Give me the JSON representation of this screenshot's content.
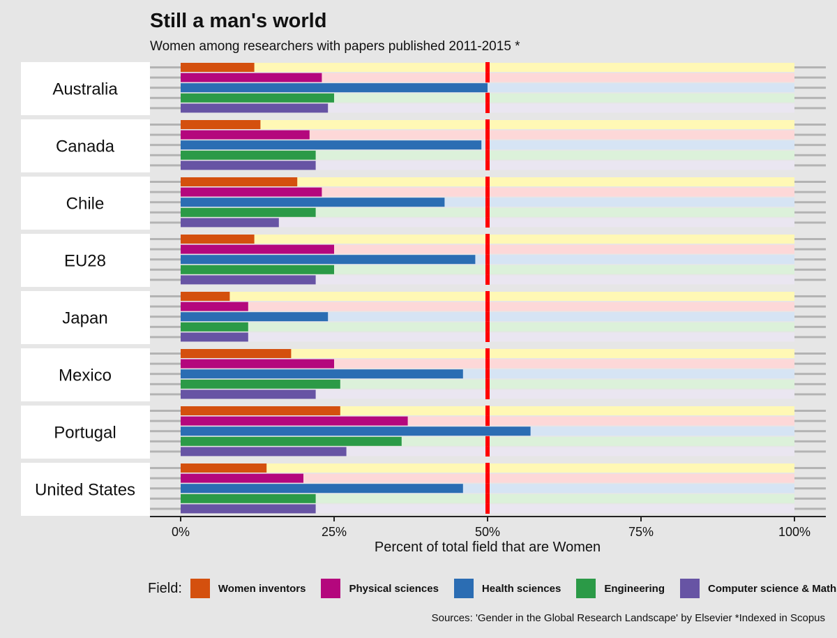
{
  "header": {
    "title": "Still a man's world",
    "subtitle": "Women among researchers with papers published 2011-2015 *"
  },
  "legend": {
    "title": "Field:",
    "items": [
      {
        "label": "Women inventors",
        "color": "#d4500e"
      },
      {
        "label": "Physical sciences",
        "color": "#b4077d"
      },
      {
        "label": "Health sciences",
        "color": "#2b6db3"
      },
      {
        "label": "Engineering",
        "color": "#2b9a47"
      },
      {
        "label": "Computer science & Math",
        "color": "#6754a4"
      }
    ]
  },
  "source": "Sources: 'Gender in the Global Research Landscape' by Elsevier *Indexed in Scopus",
  "chart_data": {
    "type": "bar",
    "orientation": "horizontal",
    "xlabel": "Percent of total field that are Women",
    "xlim": [
      0,
      100
    ],
    "xticks": [
      "0%",
      "25%",
      "50%",
      "75%",
      "100%"
    ],
    "xtick_values": [
      0,
      25,
      50,
      75,
      100
    ],
    "reference_line": 50,
    "reference_color": "#ff0000",
    "background_colors": [
      "#fff8b5",
      "#fdd8d8",
      "#d6e4f4",
      "#dcf1da",
      "#eae6f1"
    ],
    "categories": [
      "Australia",
      "Canada",
      "Chile",
      "EU28",
      "Japan",
      "Mexico",
      "Portugal",
      "United States"
    ],
    "series": [
      {
        "name": "Women inventors",
        "values": [
          12,
          13,
          19,
          12,
          8,
          18,
          26,
          14
        ]
      },
      {
        "name": "Physical sciences",
        "values": [
          23,
          21,
          23,
          25,
          11,
          25,
          37,
          20
        ]
      },
      {
        "name": "Health sciences",
        "values": [
          50,
          49,
          43,
          48,
          24,
          46,
          57,
          46
        ]
      },
      {
        "name": "Engineering",
        "values": [
          25,
          22,
          22,
          25,
          11,
          26,
          36,
          22
        ]
      },
      {
        "name": "Computer science & Math",
        "values": [
          24,
          22,
          16,
          22,
          11,
          22,
          27,
          22
        ]
      }
    ]
  }
}
